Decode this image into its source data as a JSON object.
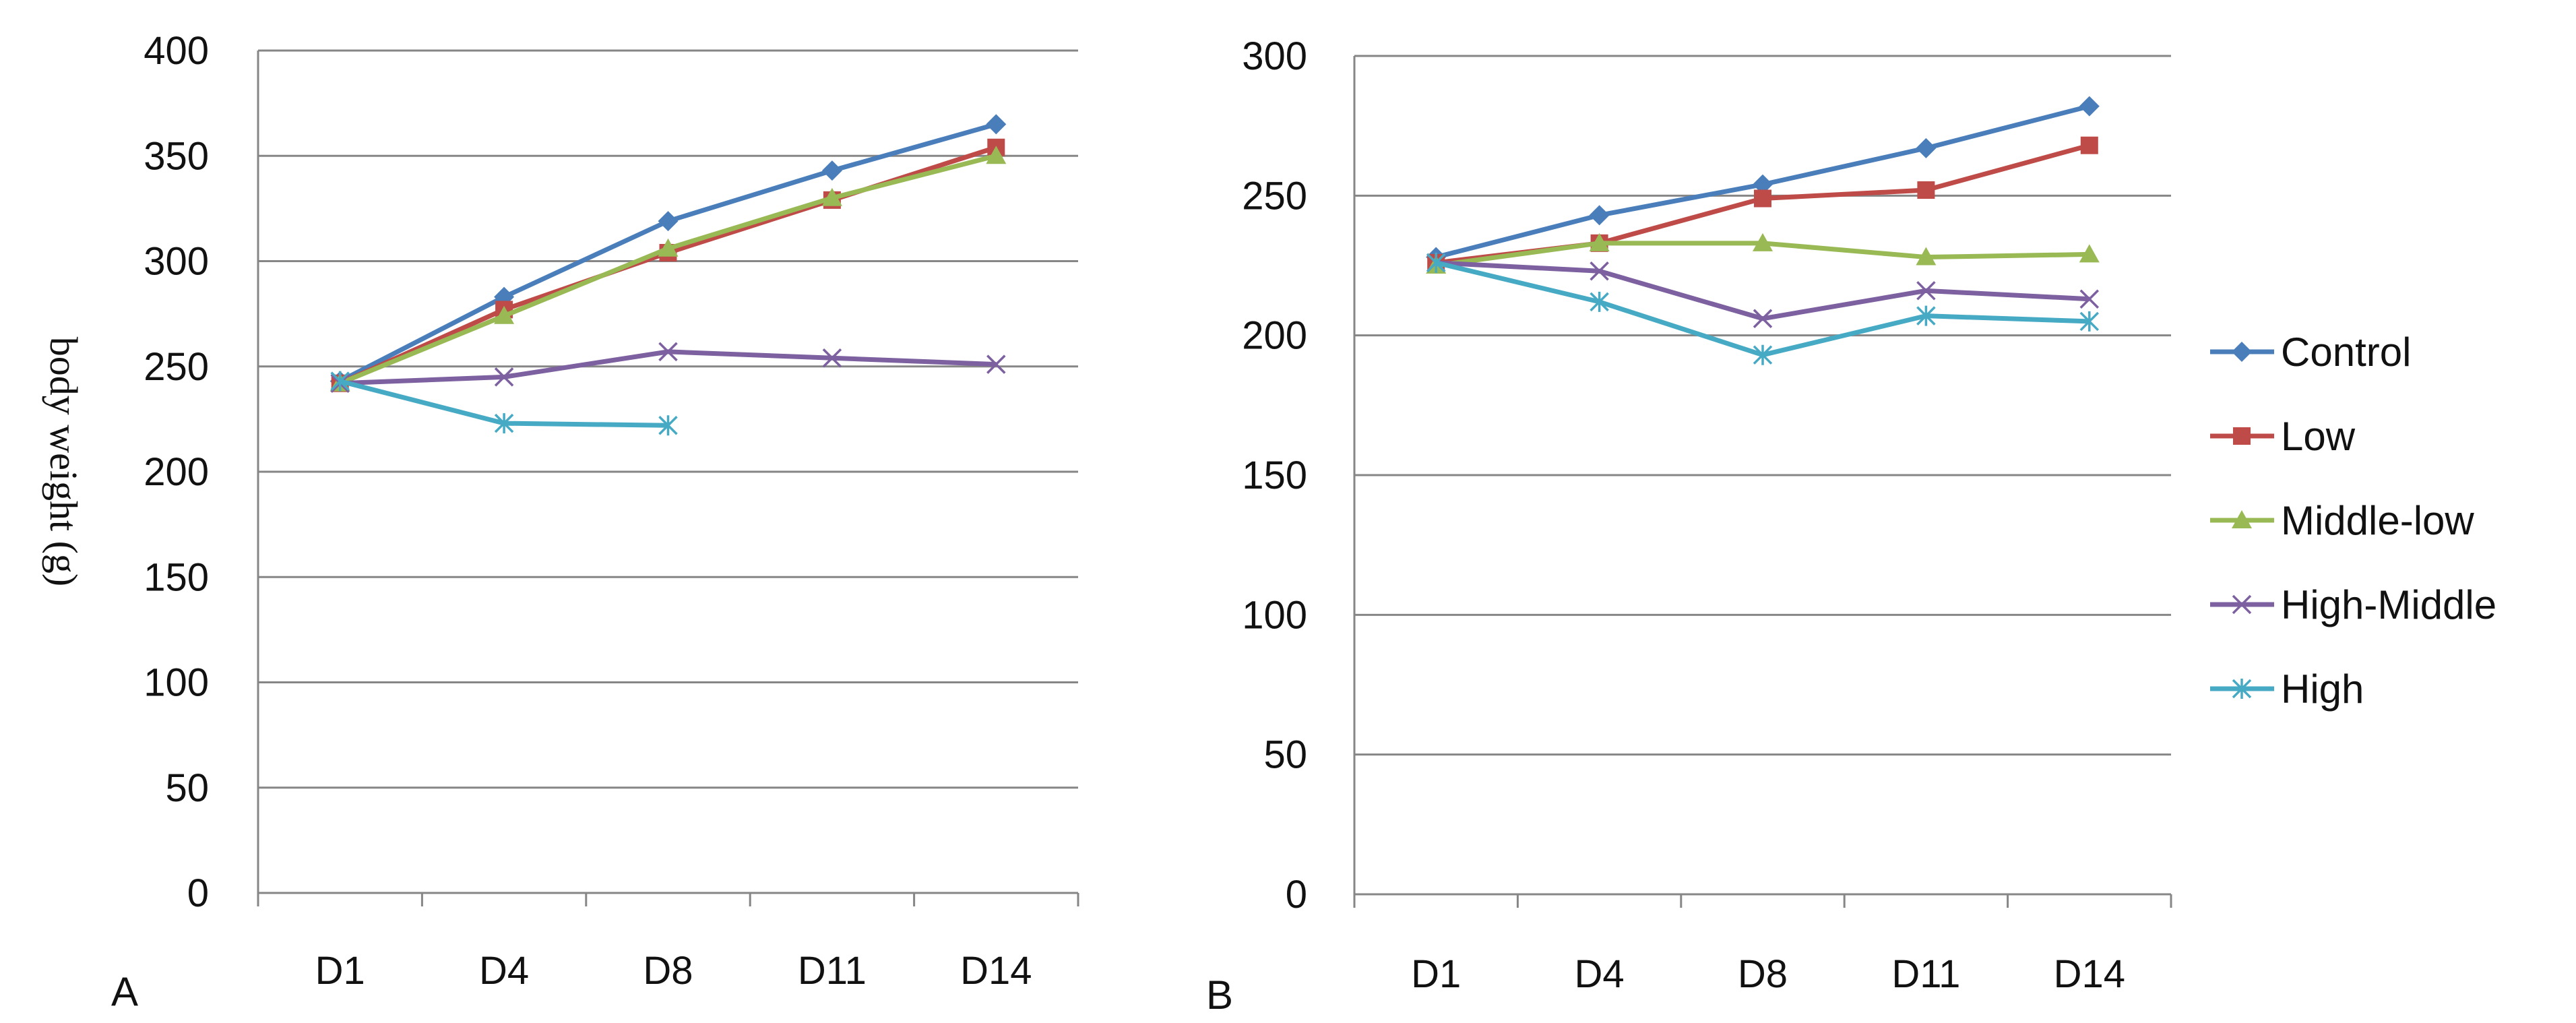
{
  "chart_data": [
    {
      "type": "line",
      "panel_label": "A",
      "ylabel": "body weight (g)",
      "xlabel": "",
      "categories": [
        "D1",
        "D4",
        "D8",
        "D11",
        "D14"
      ],
      "ylim": [
        0,
        400
      ],
      "yticks": [
        0,
        50,
        100,
        150,
        200,
        250,
        300,
        350,
        400
      ],
      "grid": true,
      "series": [
        {
          "name": "Control",
          "color": "#4a7ebb",
          "marker": "diamond",
          "values": [
            243,
            283,
            319,
            343,
            365
          ]
        },
        {
          "name": "Low",
          "color": "#be4b48",
          "marker": "square",
          "values": [
            242,
            277,
            304,
            329,
            354
          ]
        },
        {
          "name": "Middle-low",
          "color": "#98b954",
          "marker": "triangle",
          "values": [
            242,
            274,
            306,
            330,
            350
          ]
        },
        {
          "name": "High-Middle",
          "color": "#7d60a0",
          "marker": "x",
          "values": [
            242,
            245,
            257,
            254,
            251
          ]
        },
        {
          "name": "High",
          "color": "#46aac5",
          "marker": "star",
          "values": [
            243,
            223,
            222,
            null,
            null
          ]
        }
      ]
    },
    {
      "type": "line",
      "panel_label": "B",
      "ylabel": "",
      "xlabel": "",
      "categories": [
        "D1",
        "D4",
        "D8",
        "D11",
        "D14"
      ],
      "ylim": [
        0,
        300
      ],
      "yticks": [
        0,
        50,
        100,
        150,
        200,
        250,
        300
      ],
      "grid": true,
      "legend_position": "right",
      "series": [
        {
          "name": "Control",
          "color": "#4a7ebb",
          "marker": "diamond",
          "values": [
            228,
            243,
            254,
            267,
            282
          ]
        },
        {
          "name": "Low",
          "color": "#be4b48",
          "marker": "square",
          "values": [
            226,
            233,
            249,
            252,
            268
          ]
        },
        {
          "name": "Middle-low",
          "color": "#98b954",
          "marker": "triangle",
          "values": [
            225,
            233,
            233,
            228,
            229
          ]
        },
        {
          "name": "High-Middle",
          "color": "#7d60a0",
          "marker": "x",
          "values": [
            226,
            223,
            206,
            216,
            213
          ]
        },
        {
          "name": "High",
          "color": "#46aac5",
          "marker": "star",
          "values": [
            226,
            212,
            193,
            207,
            205
          ]
        }
      ]
    }
  ]
}
